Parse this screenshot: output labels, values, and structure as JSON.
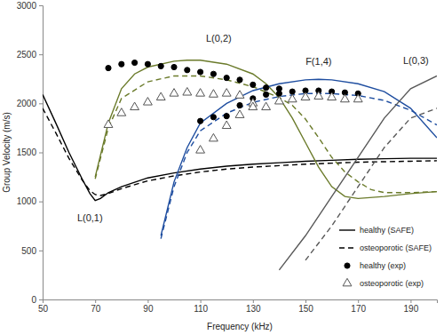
{
  "chart_data": {
    "type": "line",
    "xlabel": "Frequency (kHz)",
    "ylabel": "Group Velocity (m/s)",
    "xlim": [
      50,
      200
    ],
    "ylim": [
      0,
      3000
    ],
    "xticks": [
      50,
      70,
      90,
      110,
      130,
      150,
      170,
      190
    ],
    "yticks": [
      0,
      500,
      1000,
      1500,
      2000,
      2500,
      3000
    ],
    "grid": false,
    "legend": "lower right",
    "annotations": [
      {
        "text": "L(0,1)",
        "x": 68,
        "y": 800
      },
      {
        "text": "L(0,2)",
        "x": 117,
        "y": 2630
      },
      {
        "text": "F(1,4)",
        "x": 155,
        "y": 2390
      },
      {
        "text": "L(0,3)",
        "x": 192,
        "y": 2400
      }
    ],
    "series": [
      {
        "name": "healthy (SAFE)",
        "type": "line",
        "line_style": "solid",
        "color": "#000000",
        "x": [
          50,
          55,
          60,
          65,
          68,
          70,
          72,
          75,
          80,
          90,
          100,
          110,
          120,
          130,
          140,
          150,
          160,
          170,
          180,
          190,
          200
        ],
        "values": [
          2090,
          1800,
          1500,
          1230,
          1080,
          1010,
          1030,
          1090,
          1150,
          1240,
          1290,
          1330,
          1360,
          1380,
          1395,
          1410,
          1420,
          1430,
          1435,
          1440,
          1440
        ]
      },
      {
        "name": "osteoporotic (SAFE)",
        "type": "line",
        "line_style": "dashed",
        "color": "#000000",
        "x": [
          50,
          55,
          60,
          65,
          68,
          70,
          72,
          75,
          80,
          90,
          100,
          110,
          120,
          130,
          140,
          150,
          160,
          170,
          180,
          190,
          200
        ],
        "values": [
          1950,
          1700,
          1440,
          1220,
          1110,
          1070,
          1060,
          1080,
          1130,
          1210,
          1260,
          1300,
          1330,
          1350,
          1365,
          1380,
          1390,
          1400,
          1405,
          1410,
          1415
        ]
      },
      {
        "name": "healthy (SAFE)",
        "type": "line",
        "line_style": "solid",
        "color": "#6b7b2b",
        "x": [
          70,
          75,
          80,
          85,
          90,
          100,
          105,
          110,
          120,
          130,
          135,
          140,
          145,
          150,
          155,
          160,
          165,
          170,
          180,
          190,
          200
        ],
        "values": [
          1250,
          1800,
          2150,
          2300,
          2370,
          2430,
          2440,
          2440,
          2400,
          2300,
          2200,
          2060,
          1850,
          1600,
          1350,
          1150,
          1050,
          1030,
          1050,
          1080,
          1100
        ]
      },
      {
        "name": "osteoporotic (SAFE)",
        "type": "line",
        "line_style": "dashed",
        "color": "#6b7b2b",
        "x": [
          70,
          75,
          80,
          90,
          100,
          110,
          120,
          130,
          140,
          145,
          150,
          155,
          160,
          165,
          170,
          175,
          180,
          190,
          200
        ],
        "values": [
          1230,
          1750,
          2050,
          2220,
          2280,
          2280,
          2240,
          2170,
          2060,
          1980,
          1840,
          1650,
          1450,
          1300,
          1200,
          1120,
          1090,
          1090,
          1100
        ]
      },
      {
        "name": "healthy (SAFE)",
        "type": "line",
        "line_style": "solid",
        "color": "#1f4ea0",
        "x": [
          95,
          100,
          105,
          110,
          120,
          130,
          140,
          150,
          155,
          160,
          170,
          180,
          190,
          200
        ],
        "values": [
          650,
          1200,
          1550,
          1800,
          2000,
          2130,
          2200,
          2240,
          2245,
          2240,
          2200,
          2120,
          1950,
          1650
        ]
      },
      {
        "name": "osteoporotic (SAFE)",
        "type": "line",
        "line_style": "dashed",
        "color": "#1f4ea0",
        "x": [
          95,
          100,
          105,
          110,
          120,
          130,
          140,
          150,
          160,
          170,
          180,
          190,
          200
        ],
        "values": [
          620,
          1150,
          1500,
          1720,
          1900,
          2010,
          2070,
          2100,
          2100,
          2080,
          2030,
          1930,
          1780
        ]
      },
      {
        "name": "healthy (SAFE)",
        "type": "line",
        "line_style": "solid",
        "color": "#595959",
        "x": [
          140,
          150,
          160,
          170,
          180,
          190,
          200
        ],
        "values": [
          300,
          650,
          1050,
          1450,
          1850,
          2150,
          2280
        ]
      },
      {
        "name": "osteoporotic (SAFE)",
        "type": "line",
        "line_style": "dashed",
        "color": "#595959",
        "x": [
          150,
          160,
          170,
          180,
          190,
          200
        ],
        "values": [
          400,
          750,
          1150,
          1550,
          1850,
          1950
        ]
      },
      {
        "name": "healthy (exp)",
        "type": "scatter",
        "marker": "circle",
        "color": "#000000",
        "x": [
          75,
          80,
          85,
          90,
          95,
          100,
          105,
          110,
          115,
          120,
          125,
          130,
          135,
          140,
          110,
          115,
          120,
          125,
          130,
          135,
          140,
          145,
          150,
          155,
          160,
          165,
          170
        ],
        "values": [
          2360,
          2400,
          2415,
          2400,
          2380,
          2370,
          2340,
          2320,
          2300,
          2260,
          2240,
          2190,
          2160,
          2150,
          1820,
          1860,
          1870,
          1980,
          2050,
          2090,
          2100,
          2120,
          2130,
          2130,
          2120,
          2110,
          2100
        ]
      },
      {
        "name": "osteoporotic (exp)",
        "type": "scatter",
        "marker": "triangle",
        "color": "#555555",
        "x": [
          75,
          80,
          85,
          90,
          95,
          100,
          105,
          110,
          115,
          120,
          125,
          130,
          135,
          110,
          115,
          120,
          125,
          130,
          140,
          145,
          150,
          155,
          160,
          165,
          170
        ],
        "values": [
          1780,
          1900,
          1960,
          2010,
          2060,
          2100,
          2110,
          2100,
          2090,
          2100,
          2080,
          2000,
          1960,
          1520,
          1640,
          1770,
          1880,
          1960,
          2020,
          2040,
          2060,
          2070,
          2060,
          2040,
          2040
        ]
      }
    ]
  }
}
